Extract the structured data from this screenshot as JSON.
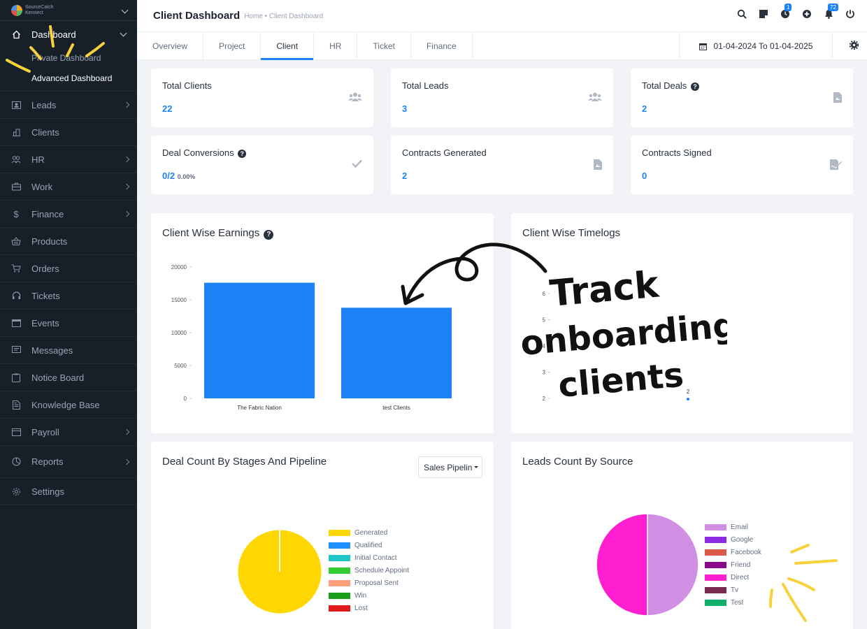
{
  "brand": {
    "line1": "SourceCatch",
    "line2": "Kennect"
  },
  "sidebar": {
    "dashboard_label": "Dashboard",
    "submenu": [
      "Private Dashboard",
      "Advanced Dashboard"
    ],
    "items": [
      {
        "label": "Leads",
        "icon": "lead-icon"
      },
      {
        "label": "Clients",
        "icon": "building-icon"
      },
      {
        "label": "HR",
        "icon": "people-icon"
      },
      {
        "label": "Work",
        "icon": "briefcase-icon"
      },
      {
        "label": "Finance",
        "icon": "dollar-icon"
      },
      {
        "label": "Products",
        "icon": "basket-icon"
      },
      {
        "label": "Orders",
        "icon": "cart-icon"
      },
      {
        "label": "Tickets",
        "icon": "headset-icon"
      },
      {
        "label": "Events",
        "icon": "calendar-icon"
      },
      {
        "label": "Messages",
        "icon": "chat-icon"
      },
      {
        "label": "Notice Board",
        "icon": "clipboard-icon"
      },
      {
        "label": "Knowledge Base",
        "icon": "document-icon"
      },
      {
        "label": "Payroll",
        "icon": "wallet-icon"
      },
      {
        "label": "Reports",
        "icon": "pie-icon"
      },
      {
        "label": "Settings",
        "icon": "gear-icon"
      }
    ]
  },
  "header": {
    "title": "Client Dashboard",
    "breadcrumb": "Home • Client Dashboard",
    "badges": {
      "timer": "1",
      "notifications": "72"
    }
  },
  "tabs": [
    "Overview",
    "Project",
    "Client",
    "HR",
    "Ticket",
    "Finance"
  ],
  "date_range": "01-04-2024 To 01-04-2025",
  "stats": [
    {
      "title": "Total Clients",
      "value": "22"
    },
    {
      "title": "Total Leads",
      "value": "3"
    },
    {
      "title": "Total Deals",
      "value": "2"
    },
    {
      "title": "Deal Conversions",
      "value": "0/2",
      "sub": "0.00%"
    },
    {
      "title": "Contracts Generated",
      "value": "2"
    },
    {
      "title": "Contracts Signed",
      "value": "0"
    }
  ],
  "panels": {
    "earnings": "Client Wise Earnings",
    "timelogs": "Client Wise Timelogs",
    "deals": "Deal Count By Stages And Pipeline",
    "leads": "Leads Count By Source",
    "pipeline_select": "Sales Pipeline"
  },
  "annotation": {
    "line1": "Track",
    "line2": "onboarding",
    "line3": "clients"
  },
  "chart_data": [
    {
      "type": "bar",
      "categories": [
        "The Fabric Nation",
        "test Clients"
      ],
      "values": [
        17600,
        13800
      ],
      "ylim": [
        0,
        20000
      ],
      "yticks": [
        "20000",
        "15000",
        "10000",
        "5000",
        "0"
      ],
      "color": "#1d82f5"
    },
    {
      "type": "scatter",
      "yticks": [
        "6",
        "5",
        "4",
        "3",
        "2"
      ],
      "points": [
        {
          "y": 2,
          "label": "2"
        }
      ],
      "color": "#1d82f5"
    },
    {
      "type": "pie",
      "labels": [
        "Generated",
        "Qualified",
        "Initial Contact",
        "Schedule Appointment",
        "Proposal Sent",
        "Win",
        "Lost"
      ],
      "values": [
        1,
        0,
        0,
        0,
        0,
        0,
        0
      ],
      "colors": [
        "#ffd700",
        "#1e90ff",
        "#20c5c5",
        "#32cd32",
        "#ffa07a",
        "#1a9e1a",
        "#e01b1b"
      ]
    },
    {
      "type": "pie",
      "labels": [
        "Email",
        "Google",
        "Facebook",
        "Friend",
        "Direct",
        "Tv",
        "Test"
      ],
      "values": [
        1,
        0,
        0,
        0,
        1,
        0,
        0
      ],
      "colors": [
        "#d08fe3",
        "#8a2be2",
        "#dc5a48",
        "#8b0a8b",
        "#ff1fd0",
        "#7a2a4e",
        "#10b06a"
      ]
    }
  ]
}
